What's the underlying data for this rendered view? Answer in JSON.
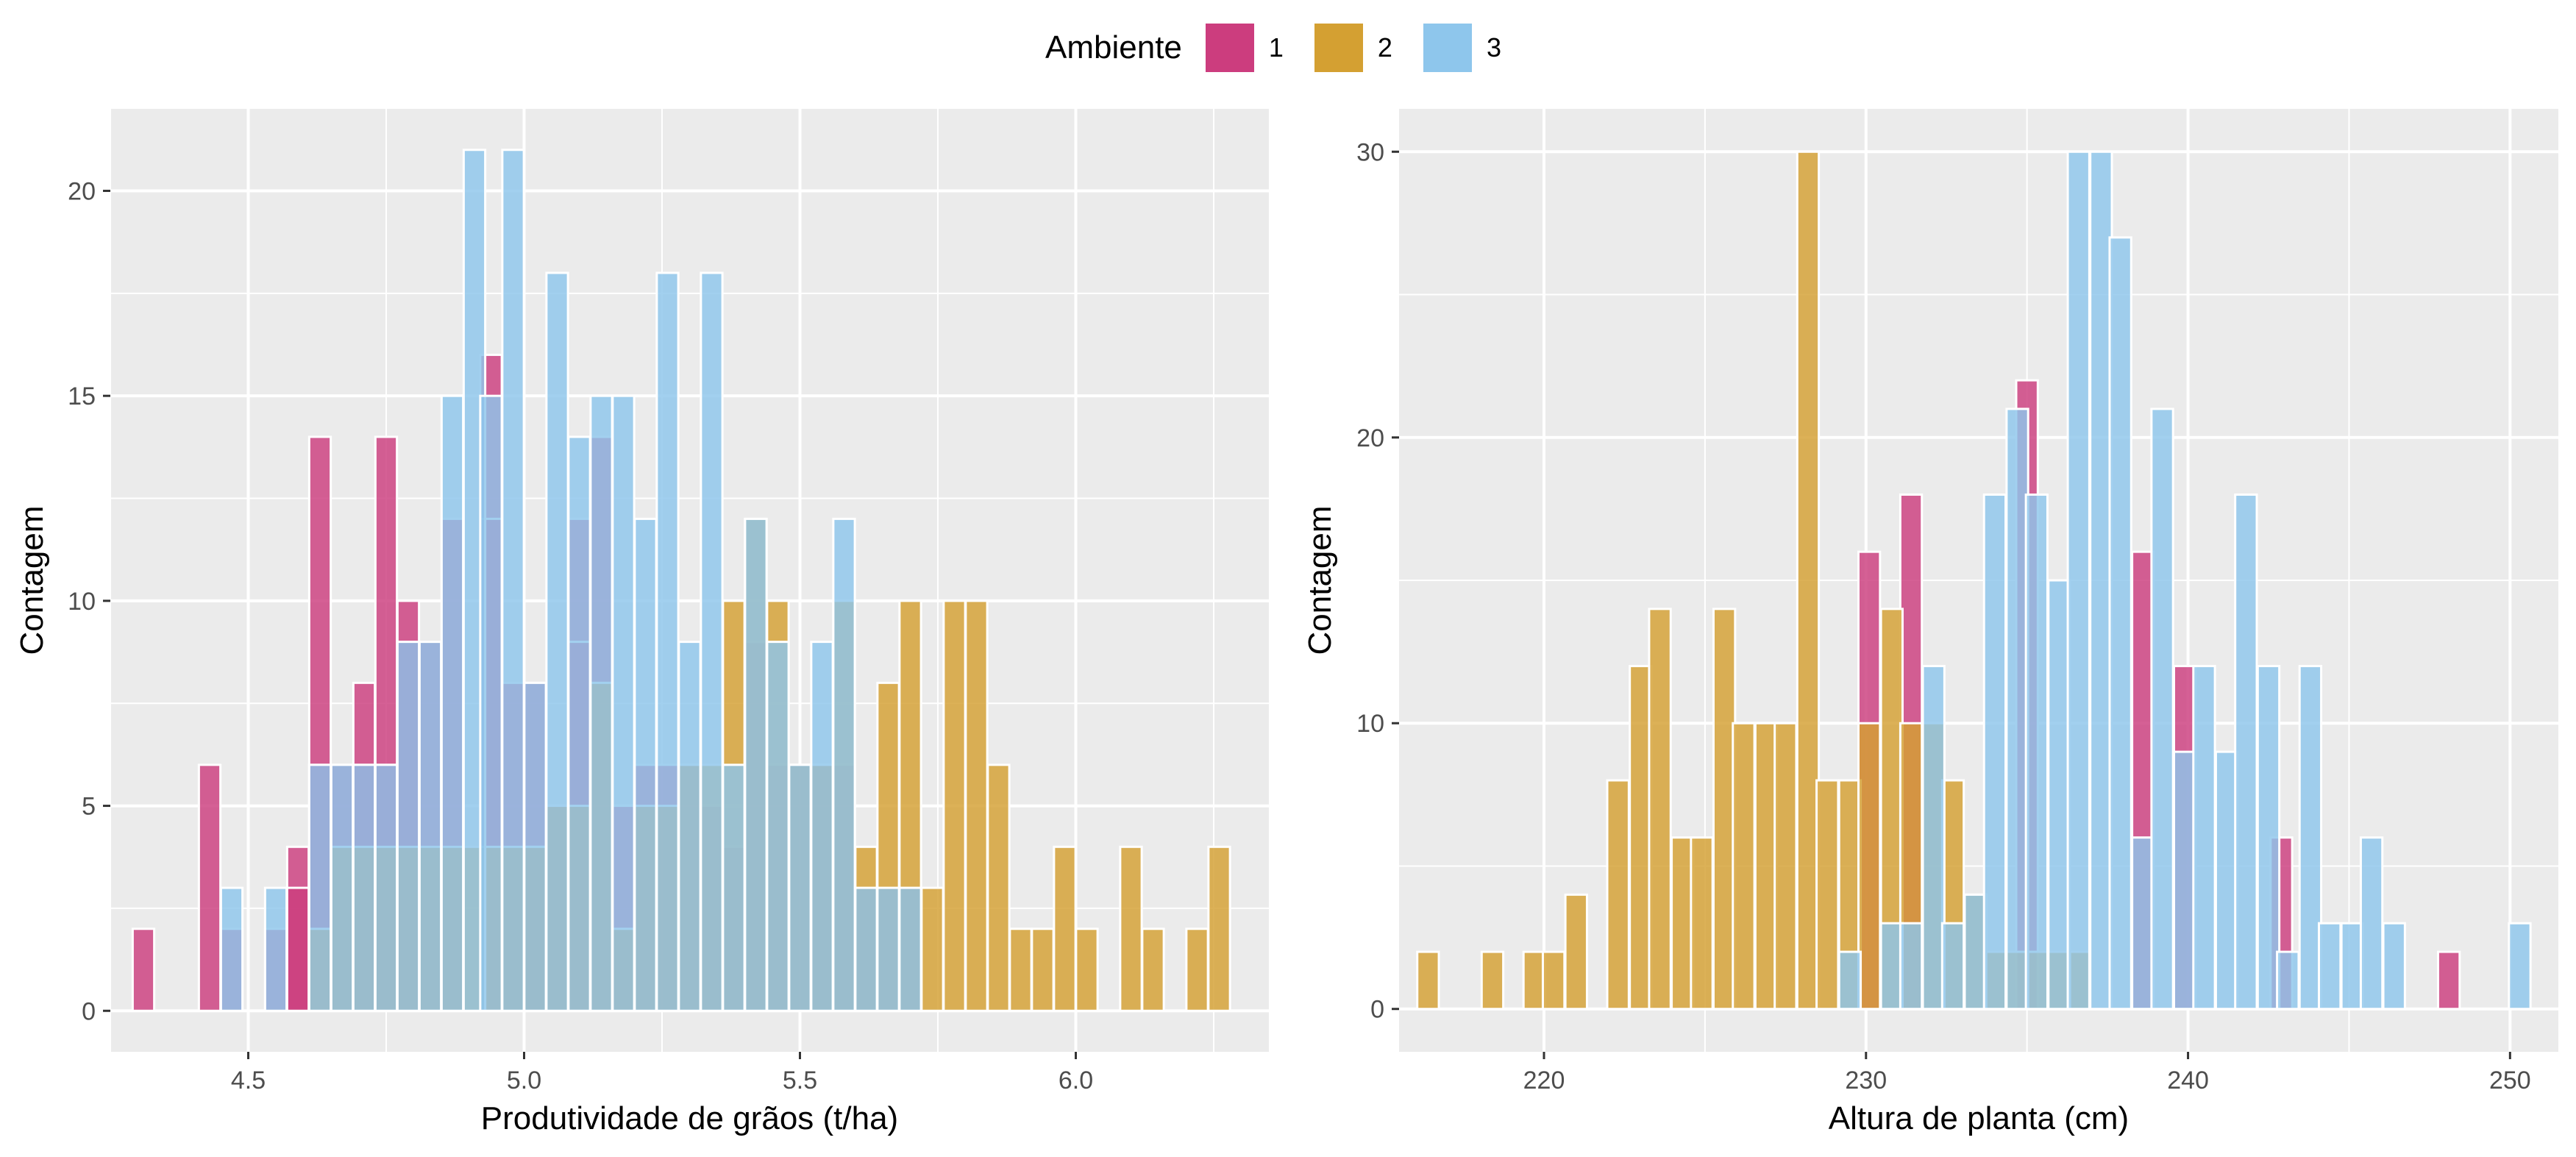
{
  "legend": {
    "title": "Ambiente",
    "items": [
      {
        "label": "1",
        "color": "#CC3D7E"
      },
      {
        "label": "2",
        "color": "#D4A032"
      },
      {
        "label": "3",
        "color": "#8EC6EC"
      }
    ]
  },
  "chart_data": [
    {
      "type": "bar",
      "subtype": "histogram-overlaid",
      "xlabel": "Produtividade de grãos (t/ha)",
      "ylabel": "Contagem",
      "xlim": [
        4.25,
        6.35
      ],
      "ylim": [
        -1,
        22
      ],
      "xticks": [
        4.5,
        5.0,
        5.5,
        6.0
      ],
      "xtick_labels": [
        "4.5",
        "5.0",
        "5.5",
        "6.0"
      ],
      "yticks": [
        0,
        5,
        10,
        15,
        20
      ],
      "bin_width": 0.039,
      "grid": true,
      "series": [
        {
          "name": "1",
          "color": "#CC3D7E",
          "bins": [
            [
              4.31,
              2
            ],
            [
              4.43,
              6
            ],
            [
              4.59,
              4
            ],
            [
              4.63,
              14
            ],
            [
              4.71,
              8
            ],
            [
              4.75,
              14
            ],
            [
              4.79,
              10
            ],
            [
              4.94,
              16
            ],
            [
              5.02,
              8
            ],
            [
              5.1,
              12
            ]
          ]
        },
        {
          "name": "1",
          "color": "#CC3D7E",
          "bins": [
            [
              4.47,
              2
            ],
            [
              4.55,
              2
            ],
            [
              4.59,
              3
            ],
            [
              4.63,
              6
            ],
            [
              4.67,
              6
            ],
            [
              4.71,
              6
            ],
            [
              4.75,
              6
            ],
            [
              4.79,
              9
            ],
            [
              4.83,
              9
            ],
            [
              4.87,
              12
            ],
            [
              4.94,
              12
            ],
            [
              4.98,
              8
            ],
            [
              5.02,
              4
            ],
            [
              5.06,
              5
            ],
            [
              5.1,
              9
            ],
            [
              5.14,
              14
            ],
            [
              5.18,
              5
            ],
            [
              5.22,
              6
            ],
            [
              5.26,
              6
            ],
            [
              5.3,
              6
            ],
            [
              5.34,
              5
            ],
            [
              5.38,
              4
            ],
            [
              5.42,
              9
            ],
            [
              5.46,
              6
            ],
            [
              5.5,
              6
            ],
            [
              5.54,
              6
            ],
            [
              5.58,
              6
            ],
            [
              5.62,
              3
            ],
            [
              5.66,
              3
            ],
            [
              5.7,
              3
            ]
          ]
        },
        {
          "name": "2",
          "color": "#D4A032",
          "bins": [
            [
              4.63,
              2
            ],
            [
              4.67,
              4
            ],
            [
              4.71,
              4
            ],
            [
              4.75,
              4
            ],
            [
              4.79,
              4
            ],
            [
              4.83,
              4
            ],
            [
              4.87,
              4
            ],
            [
              4.91,
              4
            ],
            [
              4.94,
              4
            ],
            [
              4.98,
              4
            ],
            [
              5.02,
              4
            ],
            [
              5.06,
              5
            ],
            [
              5.1,
              5
            ],
            [
              5.14,
              8
            ],
            [
              5.18,
              2
            ],
            [
              5.22,
              5
            ],
            [
              5.26,
              5
            ],
            [
              5.3,
              6
            ],
            [
              5.34,
              6
            ],
            [
              5.38,
              10
            ],
            [
              5.42,
              12
            ],
            [
              5.46,
              10
            ],
            [
              5.5,
              6
            ],
            [
              5.54,
              6
            ],
            [
              5.58,
              10
            ],
            [
              5.62,
              4
            ],
            [
              5.66,
              8
            ],
            [
              5.7,
              10
            ],
            [
              5.74,
              3
            ],
            [
              5.78,
              10
            ],
            [
              5.82,
              10
            ],
            [
              5.86,
              6
            ],
            [
              5.9,
              2
            ],
            [
              5.94,
              2
            ],
            [
              5.98,
              4
            ],
            [
              6.02,
              2
            ],
            [
              6.1,
              4
            ],
            [
              6.14,
              2
            ],
            [
              6.22,
              2
            ],
            [
              6.26,
              4
            ]
          ]
        },
        {
          "name": "3",
          "color": "#8EC6EC",
          "bins": [
            [
              4.47,
              3
            ],
            [
              4.55,
              3
            ],
            [
              4.63,
              6
            ],
            [
              4.67,
              6
            ],
            [
              4.71,
              6
            ],
            [
              4.75,
              6
            ],
            [
              4.79,
              9
            ],
            [
              4.83,
              9
            ],
            [
              4.87,
              15
            ],
            [
              4.91,
              21
            ],
            [
              4.94,
              15
            ],
            [
              4.98,
              21
            ],
            [
              5.02,
              8
            ],
            [
              5.06,
              18
            ],
            [
              5.1,
              14
            ],
            [
              5.14,
              15
            ],
            [
              5.18,
              15
            ],
            [
              5.22,
              12
            ],
            [
              5.26,
              18
            ],
            [
              5.3,
              9
            ],
            [
              5.34,
              18
            ],
            [
              5.38,
              6
            ],
            [
              5.42,
              12
            ],
            [
              5.46,
              9
            ],
            [
              5.5,
              6
            ],
            [
              5.54,
              9
            ],
            [
              5.58,
              12
            ],
            [
              5.62,
              3
            ],
            [
              5.66,
              3
            ],
            [
              5.7,
              3
            ]
          ]
        }
      ]
    },
    {
      "type": "bar",
      "subtype": "histogram-overlaid",
      "xlabel": "Altura de planta (cm)",
      "ylabel": "Contagem",
      "xlim": [
        215.5,
        251.5
      ],
      "ylim": [
        -1.5,
        31.5
      ],
      "xticks": [
        220,
        230,
        240,
        250
      ],
      "xtick_labels": [
        "220",
        "230",
        "240",
        "250"
      ],
      "yticks": [
        0,
        10,
        20,
        30
      ],
      "bin_width": 0.67,
      "grid": true,
      "series": [
        {
          "name": "1",
          "color": "#CC3D7E",
          "bins": [
            [
              230.1,
              16
            ],
            [
              231.4,
              18
            ],
            [
              235.0,
              22
            ],
            [
              238.6,
              16
            ],
            [
              239.9,
              12
            ],
            [
              242.9,
              6
            ],
            [
              248.1,
              2
            ]
          ]
        },
        {
          "name": "2",
          "color": "#D4A032",
          "bins": [
            [
              216.4,
              2
            ],
            [
              218.4,
              2
            ],
            [
              219.7,
              2
            ],
            [
              220.3,
              2
            ],
            [
              221.0,
              4
            ],
            [
              222.3,
              8
            ],
            [
              223.0,
              12
            ],
            [
              223.6,
              14
            ],
            [
              224.3,
              6
            ],
            [
              224.9,
              6
            ],
            [
              225.6,
              14
            ],
            [
              226.2,
              10
            ],
            [
              226.9,
              10
            ],
            [
              227.5,
              10
            ],
            [
              228.2,
              30
            ],
            [
              228.8,
              8
            ],
            [
              229.5,
              8
            ],
            [
              230.1,
              10
            ],
            [
              230.8,
              14
            ],
            [
              231.4,
              10
            ],
            [
              232.1,
              10
            ],
            [
              232.7,
              8
            ],
            [
              233.4,
              4
            ],
            [
              234.0,
              2
            ],
            [
              234.7,
              2
            ],
            [
              235.3,
              2
            ],
            [
              236.0,
              2
            ],
            [
              236.6,
              2
            ]
          ]
        },
        {
          "name": "3",
          "color": "#8EC6EC",
          "bins": [
            [
              229.5,
              2
            ],
            [
              230.8,
              3
            ],
            [
              231.4,
              3
            ],
            [
              232.1,
              12
            ],
            [
              232.7,
              3
            ],
            [
              233.4,
              4
            ],
            [
              234.0,
              18
            ],
            [
              234.7,
              21
            ],
            [
              235.3,
              18
            ],
            [
              236.0,
              15
            ],
            [
              236.6,
              30
            ],
            [
              237.3,
              30
            ],
            [
              237.9,
              27
            ],
            [
              238.6,
              6
            ],
            [
              239.2,
              21
            ],
            [
              239.9,
              9
            ],
            [
              240.5,
              12
            ],
            [
              241.2,
              9
            ],
            [
              241.8,
              18
            ],
            [
              242.5,
              12
            ],
            [
              243.1,
              2
            ],
            [
              243.8,
              12
            ],
            [
              244.4,
              3
            ],
            [
              245.1,
              3
            ],
            [
              245.7,
              6
            ],
            [
              246.4,
              3
            ],
            [
              250.3,
              3
            ]
          ]
        }
      ]
    }
  ]
}
